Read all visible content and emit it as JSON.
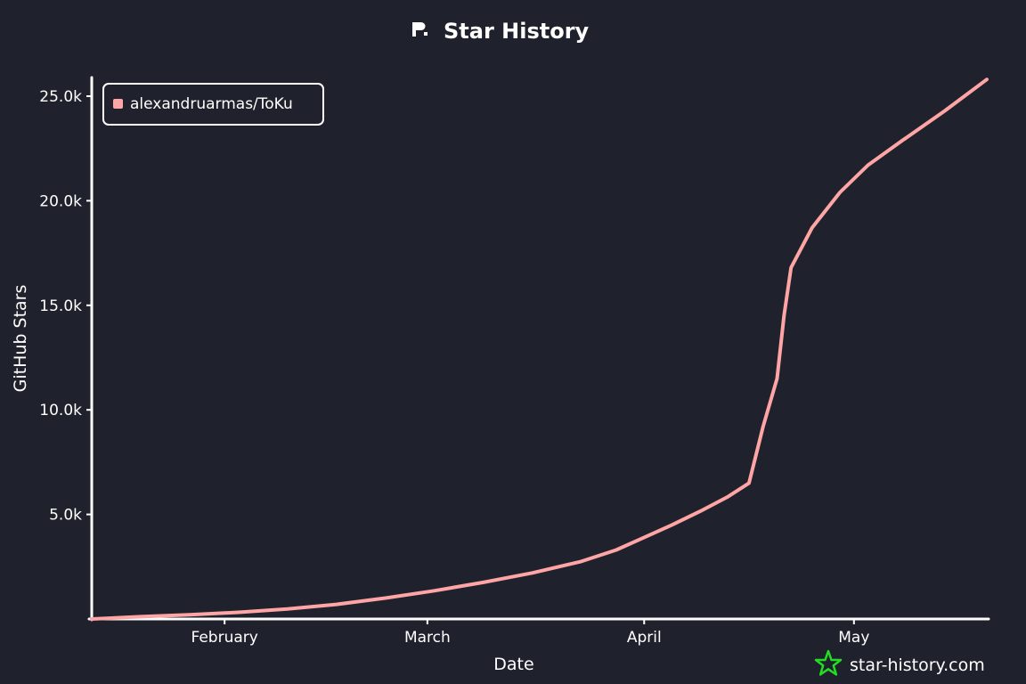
{
  "colors": {
    "background": "#1f222c",
    "foreground": "#ffffff",
    "series": "#ffa5a5",
    "watermark_icon": "#22dd22"
  },
  "header": {
    "logo_icon": "star-history-logo-icon",
    "title": "Star History"
  },
  "watermark": {
    "icon": "star-outline-icon",
    "text": "star-history.com"
  },
  "chart_data": {
    "type": "line",
    "title": "Star History",
    "xlabel": "Date",
    "ylabel": "GitHub Stars",
    "x_tick_labels": [
      "February",
      "March",
      "April",
      "May"
    ],
    "y_tick_labels": [
      "5.0k",
      "10.0k",
      "15.0k",
      "20.0k",
      "25.0k"
    ],
    "y_ticks": [
      5000,
      10000,
      15000,
      20000,
      25000
    ],
    "ylim": [
      0,
      25000
    ],
    "xlim": [
      "2024-01-13",
      "2024-05-20"
    ],
    "x_ticks": [
      "2024-02-01",
      "2024-03-01",
      "2024-04-01",
      "2024-05-01"
    ],
    "legend": {
      "position": "top-left",
      "entries": [
        "alexandruarmas/ToKu"
      ]
    },
    "grid": false,
    "series": [
      {
        "name": "alexandruarmas/ToKu",
        "points": [
          [
            "2024-01-13",
            0
          ],
          [
            "2024-01-20",
            110
          ],
          [
            "2024-01-27",
            200
          ],
          [
            "2024-02-03",
            320
          ],
          [
            "2024-02-10",
            480
          ],
          [
            "2024-02-17",
            700
          ],
          [
            "2024-02-24",
            1000
          ],
          [
            "2024-03-02",
            1350
          ],
          [
            "2024-03-09",
            1750
          ],
          [
            "2024-03-16",
            2200
          ],
          [
            "2024-03-23",
            2750
          ],
          [
            "2024-03-28",
            3300
          ],
          [
            "2024-04-01",
            3900
          ],
          [
            "2024-04-05",
            4500
          ],
          [
            "2024-04-09",
            5150
          ],
          [
            "2024-04-13",
            5850
          ],
          [
            "2024-04-16",
            6500
          ],
          [
            "2024-04-18",
            9200
          ],
          [
            "2024-04-20",
            11500
          ],
          [
            "2024-04-21",
            14500
          ],
          [
            "2024-04-22",
            16800
          ],
          [
            "2024-04-25",
            18700
          ],
          [
            "2024-04-29",
            20400
          ],
          [
            "2024-05-03",
            21700
          ],
          [
            "2024-05-08",
            22900
          ],
          [
            "2024-05-14",
            24300
          ],
          [
            "2024-05-20",
            25800
          ]
        ]
      }
    ]
  }
}
